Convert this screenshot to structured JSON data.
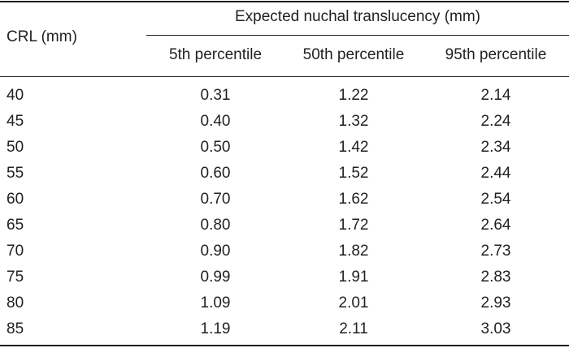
{
  "table": {
    "row_header": "CRL (mm)",
    "spanner_header": "Expected nuchal translucency (mm)",
    "columns": [
      "5th percentile",
      "50th percentile",
      "95th percentile"
    ],
    "rows": [
      {
        "crl": "40",
        "p5": "0.31",
        "p50": "1.22",
        "p95": "2.14"
      },
      {
        "crl": "45",
        "p5": "0.40",
        "p50": "1.32",
        "p95": "2.24"
      },
      {
        "crl": "50",
        "p5": "0.50",
        "p50": "1.42",
        "p95": "2.34"
      },
      {
        "crl": "55",
        "p5": "0.60",
        "p50": "1.52",
        "p95": "2.44"
      },
      {
        "crl": "60",
        "p5": "0.70",
        "p50": "1.62",
        "p95": "2.54"
      },
      {
        "crl": "65",
        "p5": "0.80",
        "p50": "1.72",
        "p95": "2.64"
      },
      {
        "crl": "70",
        "p5": "0.90",
        "p50": "1.82",
        "p95": "2.73"
      },
      {
        "crl": "75",
        "p5": "0.99",
        "p50": "1.91",
        "p95": "2.83"
      },
      {
        "crl": "80",
        "p5": "1.09",
        "p50": "2.01",
        "p95": "2.93"
      },
      {
        "crl": "85",
        "p5": "1.19",
        "p50": "2.11",
        "p95": "3.03"
      }
    ]
  }
}
